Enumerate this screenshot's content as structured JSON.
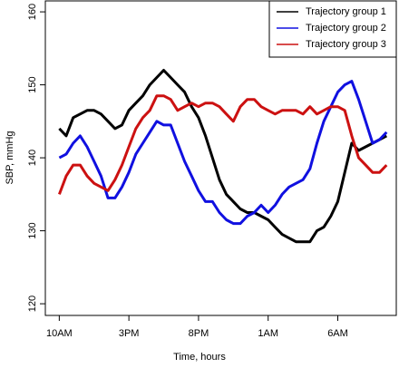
{
  "chart_data": {
    "type": "line",
    "xlabel": "Time, hours",
    "ylabel": "SBP, mmHg",
    "x": [
      0,
      0.5,
      1,
      1.5,
      2,
      2.5,
      3,
      3.5,
      4,
      4.5,
      5,
      5.5,
      6,
      6.5,
      7,
      7.5,
      8,
      8.5,
      9,
      9.5,
      10,
      10.5,
      11,
      11.5,
      12,
      12.5,
      13,
      13.5,
      14,
      14.5,
      15,
      15.5,
      16,
      16.5,
      17,
      17.5,
      18,
      18.5,
      19,
      19.5,
      20,
      20.5,
      21,
      21.5,
      22,
      22.5,
      23,
      23.5
    ],
    "series": [
      {
        "name": "Trajectory group 1",
        "color": "#000000",
        "values": [
          144,
          143,
          145.5,
          146,
          146.5,
          146.5,
          146,
          145,
          144,
          144.5,
          146.5,
          147.5,
          148.5,
          150,
          151,
          152,
          151,
          150,
          149,
          147,
          145.5,
          143,
          140,
          137,
          135,
          134,
          133,
          132.5,
          132.5,
          132,
          131.5,
          130.5,
          129.5,
          129,
          128.5,
          128.5,
          128.5,
          130,
          130.5,
          132,
          134,
          138,
          142,
          141,
          141.5,
          142,
          142.5,
          143
        ]
      },
      {
        "name": "Trajectory group 2",
        "color": "#1010e0",
        "values": [
          140,
          140.5,
          142,
          143,
          141.5,
          139.5,
          137.5,
          134.5,
          134.5,
          136,
          138,
          140.5,
          142,
          143.5,
          145,
          144.5,
          144.5,
          142,
          139.5,
          137.5,
          135.5,
          134,
          134,
          132.5,
          131.5,
          131,
          131,
          132,
          132.5,
          133.5,
          132.5,
          133.5,
          135,
          136,
          136.5,
          137,
          138.5,
          142,
          145,
          147,
          149,
          150,
          150.5,
          148,
          145,
          142,
          142.5,
          143.5
        ]
      },
      {
        "name": "Trajectory group 3",
        "color": "#cc1111",
        "values": [
          135,
          137.5,
          139,
          139,
          137.5,
          136.5,
          136,
          135.5,
          137,
          139,
          141.5,
          144,
          145.5,
          146.5,
          148.5,
          148.5,
          148,
          146.5,
          147,
          147.5,
          147,
          147.5,
          147.5,
          147,
          146,
          145,
          147,
          148,
          148,
          147,
          146.5,
          146,
          146.5,
          146.5,
          146.5,
          146,
          147,
          146,
          146.5,
          147,
          147,
          146.5,
          143,
          140,
          139,
          138,
          138,
          139
        ]
      }
    ],
    "xlim": [
      -1,
      24.2
    ],
    "xticks": [
      {
        "value": 0,
        "label": "10AM"
      },
      {
        "value": 5,
        "label": "3PM"
      },
      {
        "value": 10,
        "label": "8PM"
      },
      {
        "value": 15,
        "label": "1AM"
      },
      {
        "value": 20,
        "label": "6AM"
      }
    ],
    "ylim": [
      118.4,
      161.5
    ],
    "yticks": [
      120,
      130,
      140,
      150,
      160
    ],
    "legend": "topright"
  }
}
